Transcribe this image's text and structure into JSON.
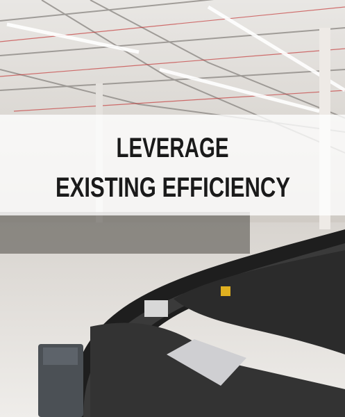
{
  "headline": {
    "lines": [
      "LEVERAGE",
      "EXISTING EFFICIENCY"
    ]
  }
}
